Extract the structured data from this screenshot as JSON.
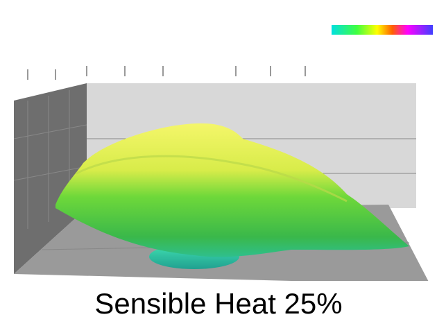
{
  "caption": "Sensible Heat 25%"
}
